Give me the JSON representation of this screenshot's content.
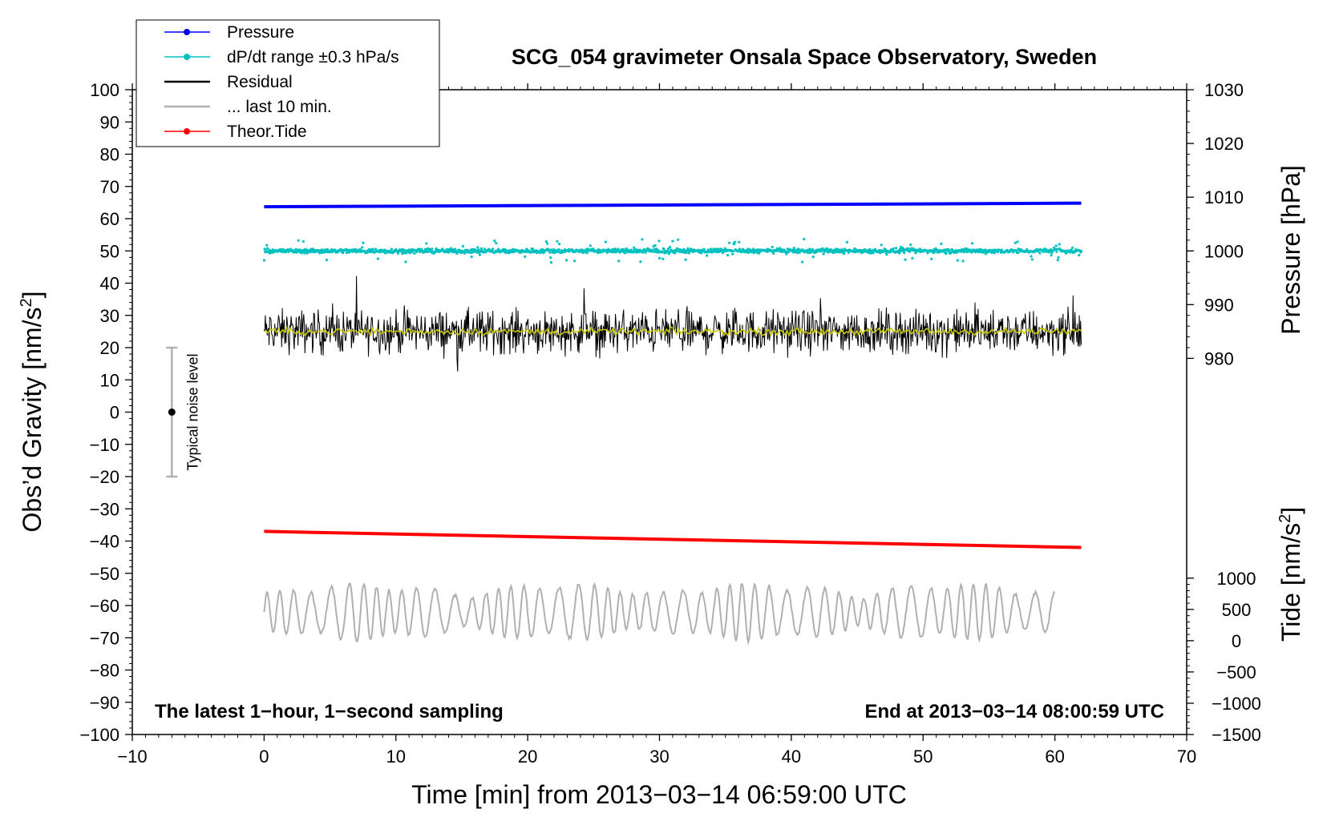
{
  "chart_data": {
    "type": "line",
    "title": "SCG_054 gravimeter Onsala Space Observatory, Sweden",
    "xlabel": "Time [min] from 2013−03−14 06:59:00 UTC",
    "ylabel_left": "Obs’d Gravity [nm/s",
    "ylabel_left_sup": "2",
    "ylabel_left_end": "]",
    "ylabel_right_pressure": "Pressure [hPa]",
    "ylabel_right_tide": "Tide [nm/s",
    "ylabel_right_tide_sup": "2",
    "ylabel_right_tide_end": "]",
    "note_left": "The latest 1−hour, 1−second sampling",
    "note_right": "End at 2013−03−14 08:00:59 UTC",
    "noise_label": "Typical noise level",
    "noise_range": [
      -20,
      20
    ],
    "noise_x": -7,
    "xlim": [
      -10,
      70
    ],
    "ylim": [
      -100,
      100
    ],
    "x_ticks": [
      {
        "value": -10,
        "label": "−10"
      },
      {
        "value": 0,
        "label": "0"
      },
      {
        "value": 10,
        "label": "10"
      },
      {
        "value": 20,
        "label": "20"
      },
      {
        "value": 30,
        "label": "30"
      },
      {
        "value": 40,
        "label": "40"
      },
      {
        "value": 50,
        "label": "50"
      },
      {
        "value": 60,
        "label": "60"
      },
      {
        "value": 70,
        "label": "70"
      }
    ],
    "y_ticks": [
      {
        "value": 100,
        "label": "100"
      },
      {
        "value": 90,
        "label": "90"
      },
      {
        "value": 80,
        "label": "80"
      },
      {
        "value": 70,
        "label": "70"
      },
      {
        "value": 60,
        "label": "60"
      },
      {
        "value": 50,
        "label": "50"
      },
      {
        "value": 40,
        "label": "40"
      },
      {
        "value": 30,
        "label": "30"
      },
      {
        "value": 20,
        "label": "20"
      },
      {
        "value": 10,
        "label": "10"
      },
      {
        "value": 0,
        "label": "0"
      },
      {
        "value": -10,
        "label": "−10"
      },
      {
        "value": -20,
        "label": "−20"
      },
      {
        "value": -30,
        "label": "−30"
      },
      {
        "value": -40,
        "label": "−40"
      },
      {
        "value": -50,
        "label": "−50"
      },
      {
        "value": -60,
        "label": "−60"
      },
      {
        "value": -70,
        "label": "−70"
      },
      {
        "value": -80,
        "label": "−80"
      },
      {
        "value": -90,
        "label": "−90"
      },
      {
        "value": -100,
        "label": "−100"
      }
    ],
    "pressure_axis": {
      "range": [
        980,
        1030
      ],
      "ticks": [
        {
          "value": 1030,
          "label": "1030"
        },
        {
          "value": 1020,
          "label": "1020"
        },
        {
          "value": 1010,
          "label": "1010"
        },
        {
          "value": 1000,
          "label": "1000"
        },
        {
          "value": 990,
          "label": "990"
        },
        {
          "value": 980,
          "label": "980"
        }
      ]
    },
    "tide_axis": {
      "range": [
        -1500,
        1000
      ],
      "ticks": [
        {
          "value": 1000,
          "label": "1000"
        },
        {
          "value": 500,
          "label": "500"
        },
        {
          "value": 0,
          "label": "0"
        },
        {
          "value": -500,
          "label": "−500"
        },
        {
          "value": -1000,
          "label": "−1000"
        },
        {
          "value": -1500,
          "label": "−1500"
        }
      ]
    },
    "legend": [
      {
        "name": "Pressure",
        "color": "#0000ff",
        "marker": true
      },
      {
        "name": "dP/dt range ±0.3 hPa/s",
        "color": "#00c0c0",
        "marker": true
      },
      {
        "name": "Residual",
        "color": "#000000",
        "marker": false
      },
      {
        "name": "... last 10 min.",
        "color": "#b0b0b0",
        "marker": false
      },
      {
        "name": "Theor.Tide",
        "color": "#ff0000",
        "marker": true
      }
    ],
    "series": [
      {
        "name": "Pressure",
        "color": "#0000ff",
        "x": [
          0,
          62
        ],
        "y": [
          63.7,
          64.8
        ]
      },
      {
        "name": "dP/dt range ±0.3 hPa/s",
        "color": "#00c0c0",
        "x_range": [
          0,
          62
        ],
        "center": 50,
        "spread": 1.5
      },
      {
        "name": "Residual",
        "color": "#000000",
        "x_range": [
          0,
          62
        ],
        "center": 25,
        "spread": 5
      },
      {
        "name": "Residual (smoothed)",
        "color": "#c8c800",
        "x_range": [
          0,
          62
        ],
        "center": 25,
        "spread": 0.8
      },
      {
        "name": "... last 10 min.",
        "color": "#b0b0b0",
        "x_range": [
          0,
          60
        ],
        "center": -62,
        "spread": 6
      },
      {
        "name": "Theor.Tide",
        "color": "#ff0000",
        "x": [
          0,
          62
        ],
        "y": [
          -37,
          -42
        ]
      }
    ]
  }
}
